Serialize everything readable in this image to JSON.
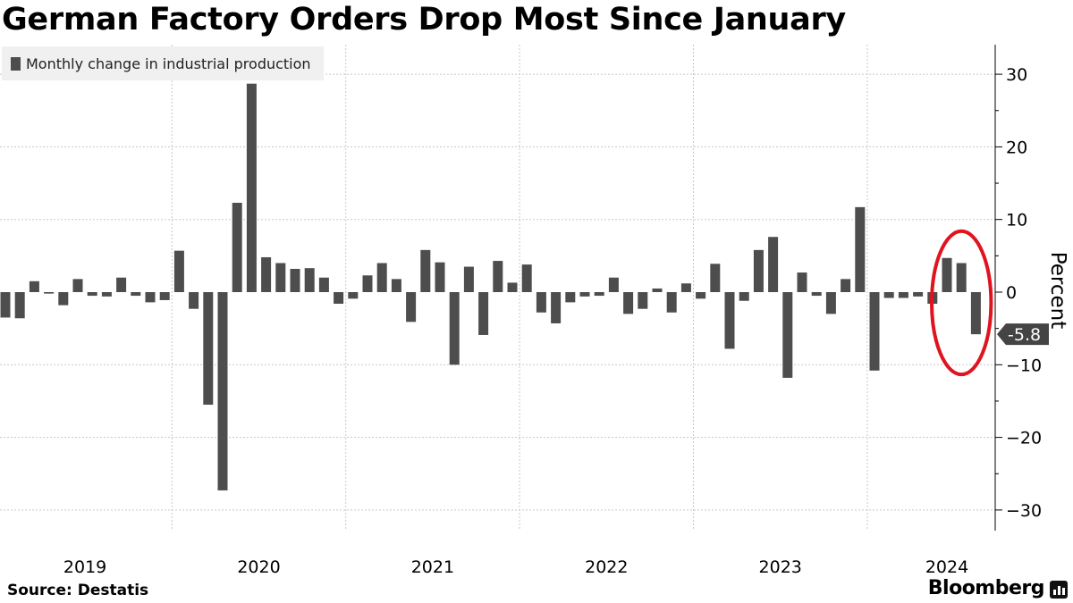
{
  "title": "German Factory Orders Drop Most Since January",
  "legend": {
    "label": "Monthly change in industrial production"
  },
  "source": "Source:  Destatis",
  "brand": "Bloomberg",
  "colors": {
    "bar": "#4d4d4d",
    "grid": "#c8c8c8",
    "highlight": "#e0131e",
    "callout": "#444444"
  },
  "chart_data": {
    "type": "bar",
    "title": "German Factory Orders Drop Most Since January",
    "xlabel": "",
    "ylabel": "Percent",
    "ylim": [
      -33,
      34
    ],
    "yticks": [
      30,
      20,
      10,
      0,
      -10,
      -20,
      -30
    ],
    "grid": true,
    "legend_position": "top-left",
    "series": [
      {
        "name": "Monthly change in industrial production",
        "values": [
          -3.5,
          -3.6,
          1.5,
          -0.2,
          -1.8,
          1.8,
          -0.5,
          -0.6,
          2.0,
          -0.5,
          -1.4,
          -1.1,
          5.7,
          -2.3,
          -15.5,
          -27.3,
          12.3,
          28.7,
          4.8,
          4.0,
          3.2,
          3.3,
          2.0,
          -1.6,
          -0.9,
          2.3,
          4.0,
          1.8,
          -4.1,
          5.8,
          4.1,
          -10.0,
          3.5,
          -5.9,
          4.3,
          1.3,
          3.8,
          -2.8,
          -4.3,
          -1.4,
          -0.6,
          -0.5,
          2.0,
          -3.0,
          -2.3,
          0.5,
          -2.8,
          1.2,
          -0.9,
          3.9,
          -7.8,
          -1.2,
          5.8,
          7.6,
          -11.8,
          2.7,
          -0.5,
          -3.0,
          1.8,
          11.7,
          -10.8,
          -0.8,
          -0.8,
          -0.6,
          -1.6,
          4.7,
          4.0,
          -5.8
        ]
      }
    ],
    "x_labels": [
      {
        "label": "2019",
        "month_index": 5.5
      },
      {
        "label": "2020",
        "month_index": 17.5
      },
      {
        "label": "2021",
        "month_index": 29.5
      },
      {
        "label": "2022",
        "month_index": 41.5
      },
      {
        "label": "2023",
        "month_index": 53.5
      },
      {
        "label": "2024",
        "month_index": 65.0
      }
    ],
    "year_boundaries": [
      12,
      24,
      36,
      48,
      60
    ],
    "last_value_label": "-5.8",
    "highlight_last_n": 3
  }
}
